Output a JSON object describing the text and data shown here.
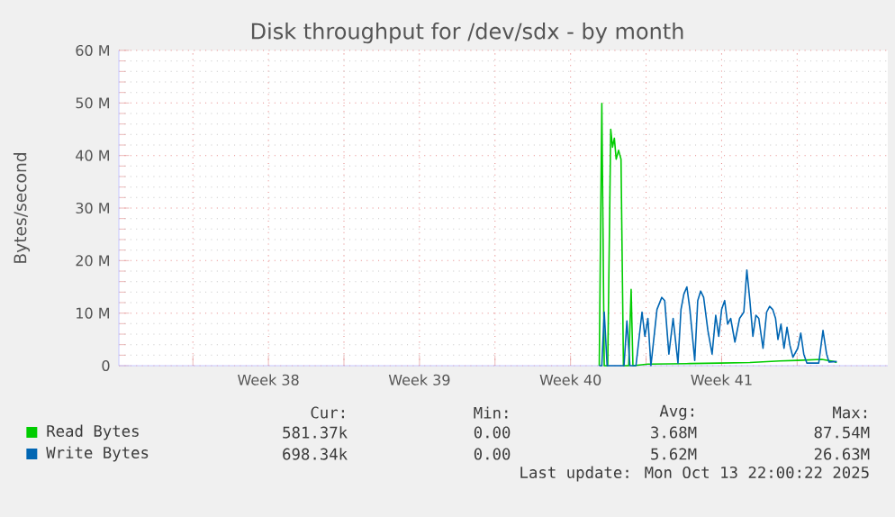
{
  "chart_data": {
    "type": "line",
    "title": "Disk throughput for /dev/sdx - by month",
    "ylabel": "Bytes/second",
    "xlim": [
      "2025-09-11T13:40",
      "2025-10-17T04:48"
    ],
    "xticks": [
      {
        "value": "2025-09-15",
        "label": null
      },
      {
        "value": "2025-09-18T12:00",
        "label": "Week 38"
      },
      {
        "value": "2025-09-22",
        "label": null
      },
      {
        "value": "2025-09-25T12:00",
        "label": "Week 39"
      },
      {
        "value": "2025-09-29",
        "label": null
      },
      {
        "value": "2025-10-02T12:00",
        "label": "Week 40"
      },
      {
        "value": "2025-10-06",
        "label": null
      },
      {
        "value": "2025-10-09T12:00",
        "label": "Week 41"
      },
      {
        "value": "2025-10-13",
        "label": null
      }
    ],
    "ylim": [
      0,
      60000000
    ],
    "yticks": [
      0,
      {
        "value": 10000000,
        "label": "10 M"
      },
      {
        "value": 20000000,
        "label": "20 M"
      },
      {
        "value": 30000000,
        "label": "30 M"
      },
      {
        "value": 40000000,
        "label": "40 M"
      },
      {
        "value": 50000000,
        "label": "50 M"
      },
      {
        "value": 60000000,
        "label": "60 M"
      }
    ],
    "grid": true,
    "legend": "bottom",
    "marker": "none",
    "line_style": "solid",
    "series": [
      {
        "name": "Read Bytes",
        "color": "#00cc00",
        "x": [
          "2025-10-03T19:55",
          "2025-10-03T22:47",
          "2025-10-04T01:28",
          "2025-10-04T05:20",
          "2025-10-04T08:41",
          "2025-10-04T10:42",
          "2025-10-04T12:43",
          "2025-10-04T14:44",
          "2025-10-04T17:25",
          "2025-10-04T20:07",
          "2025-10-04T22:48",
          "2025-10-05T04:41",
          "2025-10-05T07:22",
          "2025-10-05T09:23",
          "2025-10-06T02:01",
          "2025-10-08T00:43",
          "2025-10-09T09:59",
          "2025-10-10T19:25",
          "2025-10-12T04:41",
          "2025-10-13T00:40",
          "2025-10-14T03:23",
          "2025-10-14T16:40",
          "2025-10-14T20:01"
        ],
        "values": [
          0,
          49900000,
          0,
          0,
          45000000,
          41600000,
          43300000,
          39300000,
          41000000,
          39300000,
          0,
          0,
          14500000,
          0,
          300000,
          400000,
          500000,
          600000,
          900000,
          1000000,
          1200000,
          800000,
          600000
        ]
      },
      {
        "name": "Write Bytes",
        "color": "#0066b3",
        "x": [
          "2025-10-03T19:55",
          "2025-10-03T22:47",
          "2025-10-04T01:28",
          "2025-10-04T04:40",
          "2025-10-04T23:28",
          "2025-10-05T02:40",
          "2025-10-05T06:01",
          "2025-10-05T12:44",
          "2025-10-05T19:28",
          "2025-10-05T22:40",
          "2025-10-06T02:01",
          "2025-10-06T05:23",
          "2025-10-06T12:06",
          "2025-10-06T17:28",
          "2025-10-06T20:40",
          "2025-10-07T01:22",
          "2025-10-07T06:04",
          "2025-10-07T11:27",
          "2025-10-07T14:49",
          "2025-10-07T18:00",
          "2025-10-07T21:22",
          "2025-10-08T00:43",
          "2025-10-08T06:06",
          "2025-10-08T09:27",
          "2025-10-08T12:39",
          "2025-10-08T16:00",
          "2025-10-08T20:43",
          "2025-10-09T01:25",
          "2025-10-09T05:27",
          "2025-10-09T08:48",
          "2025-10-09T12:00",
          "2025-10-09T15:22",
          "2025-10-09T18:43",
          "2025-10-09T22:05",
          "2025-10-10T02:47",
          "2025-10-10T07:59",
          "2025-10-10T12:42",
          "2025-10-10T16:03",
          "2025-10-10T19:25",
          "2025-10-10T22:47",
          "2025-10-11T02:08",
          "2025-10-11T05:20",
          "2025-10-11T10:02",
          "2025-10-11T14:04",
          "2025-10-11T17:25",
          "2025-10-11T20:47",
          "2025-10-11T23:59",
          "2025-10-12T02:40",
          "2025-10-12T06:01",
          "2025-10-12T09:23",
          "2025-10-12T12:44",
          "2025-10-12T15:56",
          "2025-10-12T19:18",
          "2025-10-13T00:40",
          "2025-10-13T04:02",
          "2025-10-13T07:23",
          "2025-10-13T10:45",
          "2025-10-14T00:01",
          "2025-10-14T04:44",
          "2025-10-14T08:46",
          "2025-10-14T11:27",
          "2025-10-14T20:01"
        ],
        "values": [
          0,
          0,
          10200000,
          0,
          0,
          8500000,
          0,
          0,
          10200000,
          5600000,
          9000000,
          0,
          10700000,
          13000000,
          12400000,
          2200000,
          9000000,
          500000,
          10700000,
          13600000,
          15000000,
          10700000,
          1000000,
          12400000,
          14200000,
          13000000,
          6700000,
          2200000,
          9600000,
          5600000,
          10700000,
          12400000,
          7900000,
          9000000,
          4500000,
          9000000,
          10200000,
          18200000,
          12400000,
          5600000,
          9600000,
          9000000,
          3300000,
          10200000,
          11300000,
          10700000,
          9000000,
          5000000,
          7900000,
          3300000,
          7300000,
          3900000,
          1600000,
          3300000,
          6200000,
          2200000,
          500000,
          500000,
          6700000,
          2200000,
          700000,
          800000
        ]
      }
    ],
    "annotations": [
      "Cur:",
      "Min:",
      "Avg:",
      "Max:",
      "581.37k",
      "0.00",
      "3.68M",
      "87.54M",
      "698.34k",
      "0.00",
      "5.62M",
      "26.63M",
      "Last update: Mon Oct 13 22:00:22 2025"
    ]
  }
}
